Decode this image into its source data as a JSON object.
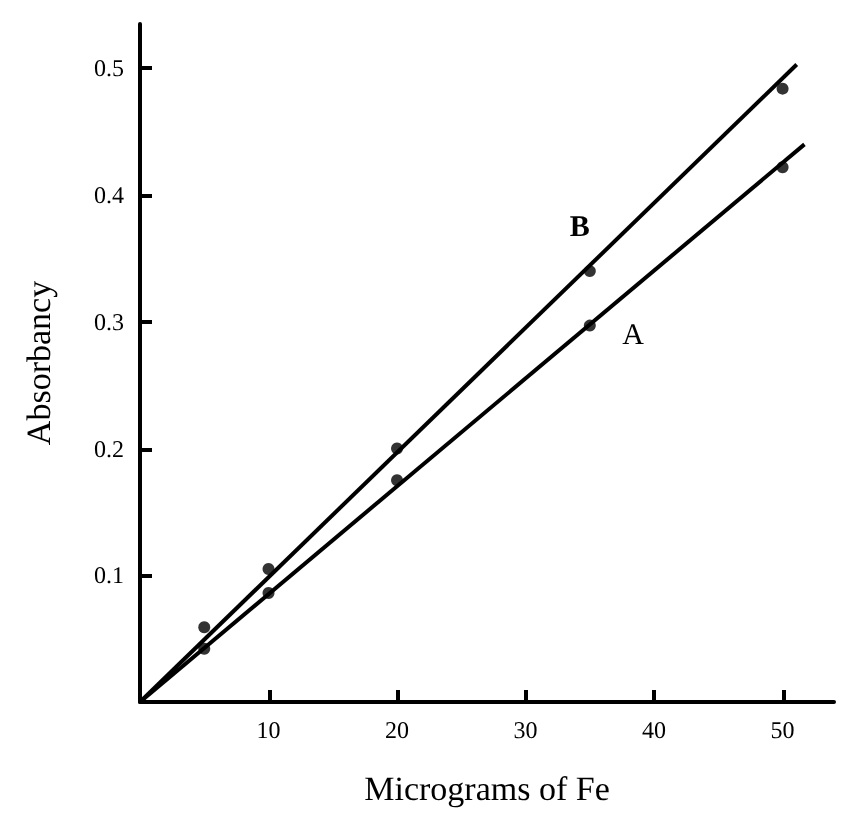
{
  "chart_data": {
    "type": "scatter",
    "xlabel": "Micrograms of Fe",
    "ylabel": "Absorbancy",
    "xlim": [
      0,
      54
    ],
    "ylim": [
      0,
      0.535
    ],
    "xticks": [
      10,
      20,
      30,
      40,
      50
    ],
    "yticks": [
      0.1,
      0.2,
      0.3,
      0.4,
      0.5
    ],
    "grid": false,
    "legend": false,
    "marker": "circle",
    "series": [
      {
        "color": "#000000",
        "x": [
          5,
          10,
          20,
          35,
          50
        ],
        "values": [
          0.059,
          0.105,
          0.2,
          0.34,
          0.484
        ]
      },
      {
        "color": "#000000",
        "x": [
          5,
          10,
          20,
          35,
          50
        ],
        "values": [
          0.042,
          0.086,
          0.175,
          0.297,
          0.422
        ]
      },
      {
        "type": "line",
        "name": "B",
        "color": "#000000",
        "x": [
          0,
          51.1
        ],
        "values": [
          0,
          0.503
        ],
        "marker": "none"
      },
      {
        "type": "line",
        "name": "A",
        "color": "#000000",
        "x": [
          0,
          51.7
        ],
        "values": [
          0,
          0.44
        ],
        "marker": "none"
      }
    ]
  }
}
